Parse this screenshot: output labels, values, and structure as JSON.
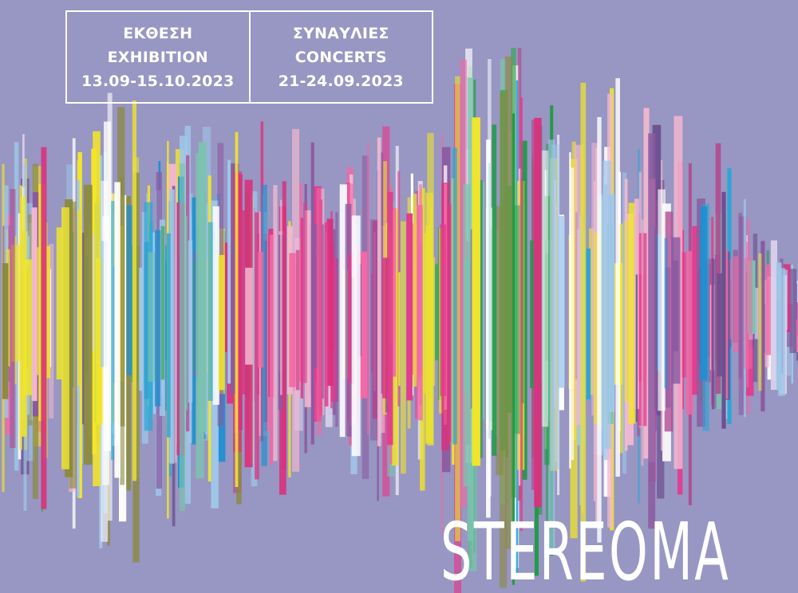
{
  "background_color": "#9896c2",
  "exhibition": {
    "label_gr": "ΕΚΘΕΣΗ",
    "label_en": "EXHIBITION",
    "dates": "13.09-15.10.2023"
  },
  "concerts": {
    "label_gr": "ΣΥΝΑΥΛΙΕΣ",
    "label_en": "CONCERTS",
    "dates": "21-24.09.2023"
  },
  "title": "STEREOMA",
  "artwork": {
    "name": "sound-waveform",
    "palette": [
      "#f2e62a",
      "#e8df36",
      "#1f8fd0",
      "#2aa6d6",
      "#e33a8c",
      "#d9327e",
      "#f06aa6",
      "#1f9a46",
      "#3aa75a",
      "#8a5aa0",
      "#6c4f8f",
      "#8b8a3e",
      "#f3b8d0",
      "#ffffff",
      "#9fc7e8",
      "#d8d0ea",
      "#b04a90",
      "#7cc3b0"
    ]
  }
}
